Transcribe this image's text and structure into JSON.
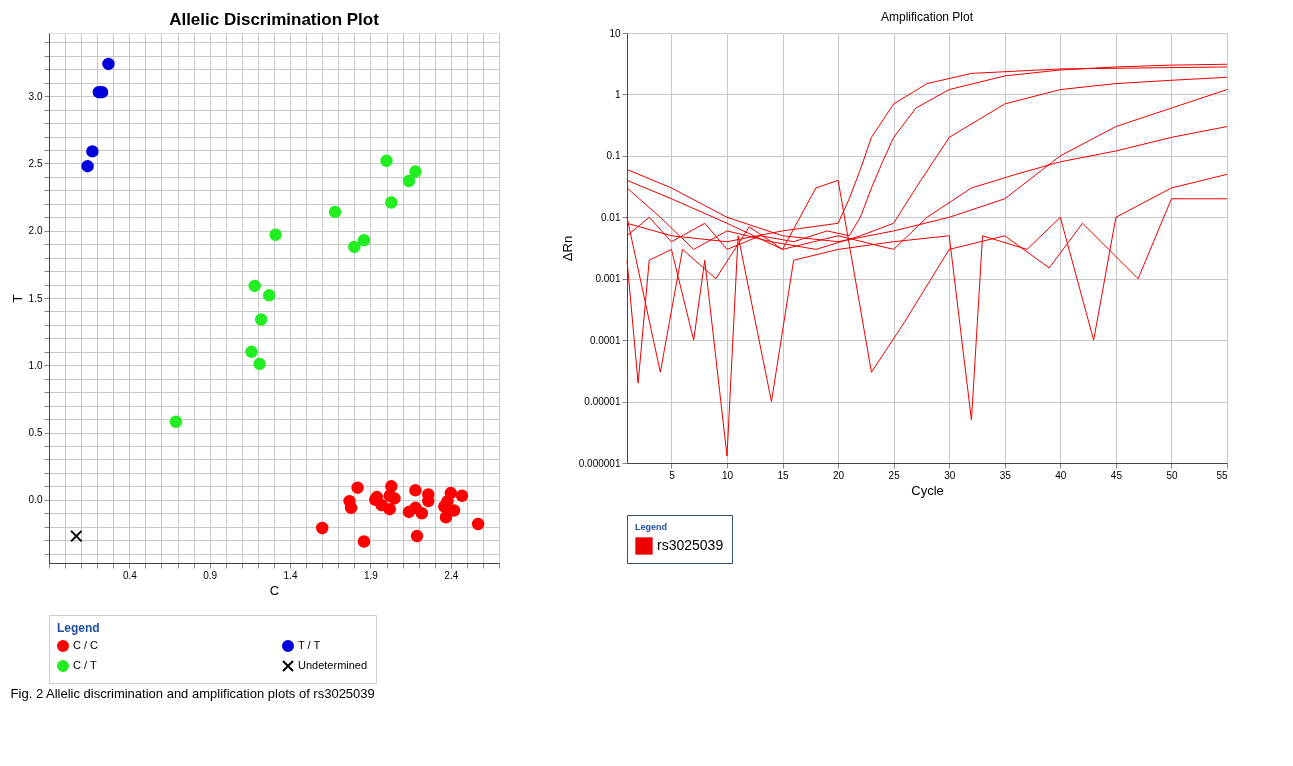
{
  "chart_data": [
    {
      "type": "scatter",
      "title": "Allelic Discrimination Plot",
      "xlabel": "C",
      "ylabel": "T",
      "legend_title": "Legend",
      "legend": "bottom",
      "grid": true,
      "xlim": [
        -0.1,
        2.7
      ],
      "ylim": [
        -0.47,
        3.47
      ],
      "xticks": [
        {
          "value": -0.1,
          "label": null
        },
        {
          "value": 0,
          "label": null
        },
        {
          "value": 0.1,
          "label": null
        },
        {
          "value": 0.2,
          "label": null
        },
        {
          "value": 0.3,
          "label": null
        },
        0.4,
        {
          "value": 0.5,
          "label": null
        },
        {
          "value": 0.6,
          "label": null
        },
        {
          "value": 0.7,
          "label": null
        },
        {
          "value": 0.8,
          "label": null
        },
        0.9,
        {
          "value": 1.0,
          "label": null
        },
        {
          "value": 1.1,
          "label": null
        },
        {
          "value": 1.2,
          "label": null
        },
        {
          "value": 1.3,
          "label": null
        },
        1.4,
        {
          "value": 1.5,
          "label": null
        },
        {
          "value": 1.6,
          "label": null
        },
        {
          "value": 1.7,
          "label": null
        },
        {
          "value": 1.8,
          "label": null
        },
        1.9,
        {
          "value": 2.0,
          "label": null
        },
        {
          "value": 2.1,
          "label": null
        },
        {
          "value": 2.2,
          "label": null
        },
        {
          "value": 2.3,
          "label": null
        },
        2.4,
        {
          "value": 2.5,
          "label": null
        },
        {
          "value": 2.6,
          "label": null
        },
        {
          "value": 2.7,
          "label": null
        }
      ],
      "yticks": [
        {
          "value": -0.4,
          "label": null
        },
        {
          "value": -0.3,
          "label": null
        },
        {
          "value": -0.2,
          "label": null
        },
        {
          "value": -0.1,
          "label": null
        },
        {
          "value": 0,
          "label": "0.0"
        },
        {
          "value": 0.1,
          "label": null
        },
        {
          "value": 0.2,
          "label": null
        },
        {
          "value": 0.3,
          "label": null
        },
        {
          "value": 0.4,
          "label": null
        },
        0.5,
        {
          "value": 0.6,
          "label": null
        },
        {
          "value": 0.7,
          "label": null
        },
        {
          "value": 0.8,
          "label": null
        },
        {
          "value": 0.9,
          "label": null
        },
        {
          "value": 1,
          "label": "1.0"
        },
        {
          "value": 1.1,
          "label": null
        },
        {
          "value": 1.2,
          "label": null
        },
        {
          "value": 1.3,
          "label": null
        },
        {
          "value": 1.4,
          "label": null
        },
        1.5,
        {
          "value": 1.6,
          "label": null
        },
        {
          "value": 1.7,
          "label": null
        },
        {
          "value": 1.8,
          "label": null
        },
        {
          "value": 1.9,
          "label": null
        },
        {
          "value": 2,
          "label": "2.0"
        },
        {
          "value": 2.1,
          "label": null
        },
        {
          "value": 2.2,
          "label": null
        },
        {
          "value": 2.3,
          "label": null
        },
        {
          "value": 2.4,
          "label": null
        },
        2.5,
        {
          "value": 2.6,
          "label": null
        },
        {
          "value": 2.7,
          "label": null
        },
        {
          "value": 2.8,
          "label": null
        },
        {
          "value": 2.9,
          "label": null
        },
        {
          "value": 3,
          "label": "3.0"
        },
        {
          "value": 3.1,
          "label": null
        },
        {
          "value": 3.2,
          "label": null
        },
        {
          "value": 3.3,
          "label": null
        },
        {
          "value": 3.4,
          "label": null
        }
      ],
      "annotations": [
        "Fig. 2 Allelic discrimination and amplification plots of rs3025039"
      ],
      "series": [
        {
          "name": "C / C",
          "color": "#ff0000",
          "marker": "circle",
          "x": [
            1.6,
            1.86,
            1.82,
            1.77,
            1.78,
            1.94,
            1.93,
            1.97,
            2.03,
            2.02,
            2.05,
            2.02,
            2.18,
            2.14,
            2.18,
            2.22,
            2.19,
            2.26,
            2.26,
            2.4,
            2.38,
            2.36,
            2.37,
            2.42,
            2.47,
            2.57
          ],
          "values": [
            -0.21,
            -0.31,
            0.09,
            -0.01,
            -0.06,
            0.02,
            0.0,
            -0.04,
            0.1,
            0.03,
            0.01,
            -0.07,
            0.07,
            -0.09,
            -0.06,
            -0.1,
            -0.27,
            0.04,
            -0.01,
            0.05,
            -0.01,
            -0.05,
            -0.13,
            -0.08,
            0.03,
            -0.18
          ]
        },
        {
          "name": "T / T",
          "color": "#0000dd",
          "marker": "circle",
          "x": [
            0.27,
            0.21,
            0.23,
            0.17,
            0.14
          ],
          "values": [
            3.24,
            3.03,
            3.03,
            2.59,
            2.48
          ]
        },
        {
          "name": "C / T",
          "color": "#22ee22",
          "marker": "circle",
          "x": [
            0.69,
            1.16,
            1.21,
            1.22,
            1.18,
            1.27,
            1.31,
            1.68,
            1.8,
            1.86,
            2.0,
            2.03,
            2.14,
            2.18
          ],
          "values": [
            0.58,
            1.1,
            1.01,
            1.34,
            1.59,
            1.52,
            1.97,
            2.14,
            1.88,
            1.93,
            2.52,
            2.21,
            2.37,
            2.44
          ]
        },
        {
          "name": "Undetermined",
          "color": "#000000",
          "marker": "cross",
          "x": [
            0.07
          ],
          "values": [
            -0.27
          ]
        }
      ]
    },
    {
      "type": "line",
      "title": "Amplification Plot",
      "xlabel": "Cycle",
      "ylabel": "ΔRn",
      "legend_title": "Legend",
      "legend": "bottom",
      "grid": true,
      "log": "y",
      "line_style": "solid",
      "xlim": [
        1,
        55
      ],
      "ylim": [
        1e-06,
        10
      ],
      "xticks": [
        5,
        10,
        15,
        20,
        25,
        30,
        35,
        40,
        45,
        50,
        55
      ],
      "yticks": [
        {
          "value": 1e-06,
          "label": "0.000001"
        },
        {
          "value": 1e-05,
          "label": "0.00001"
        },
        {
          "value": 0.0001,
          "label": "0.0001"
        },
        {
          "value": 0.001,
          "label": "0.001"
        },
        {
          "value": 0.01,
          "label": "0.01"
        },
        {
          "value": 0.1,
          "label": "0.1"
        },
        1,
        10
      ],
      "series": [
        {
          "name": "rs3025039",
          "color": "#ee0000",
          "x": [
            1,
            3,
            5,
            8,
            10,
            13,
            16,
            19,
            21,
            22,
            23,
            24,
            25,
            27,
            30,
            35,
            40,
            45,
            50,
            55
          ],
          "values": [
            0.005,
            0.01,
            0.004,
            0.008,
            0.003,
            0.005,
            0.004,
            0.006,
            0.005,
            0.01,
            0.03,
            0.08,
            0.2,
            0.6,
            1.2,
            2,
            2.5,
            2.8,
            3,
            3.1
          ]
        },
        {
          "color": "#ee0000",
          "x": [
            1,
            5,
            10,
            15,
            20,
            21,
            22,
            23,
            25,
            28,
            32,
            40,
            55
          ],
          "values": [
            0.008,
            0.005,
            0.004,
            0.006,
            0.008,
            0.02,
            0.06,
            0.2,
            0.7,
            1.5,
            2.2,
            2.6,
            2.8
          ]
        },
        {
          "color": "#ee0000",
          "x": [
            1,
            4,
            7,
            10,
            14,
            18,
            22,
            25,
            27,
            30,
            35,
            40,
            45,
            50,
            55
          ],
          "values": [
            0.03,
            0.01,
            0.003,
            0.006,
            0.004,
            0.003,
            0.005,
            0.008,
            0.03,
            0.2,
            0.7,
            1.2,
            1.5,
            1.7,
            1.9
          ]
        },
        {
          "color": "#ee0000",
          "x": [
            1,
            5,
            10,
            15,
            20,
            25,
            30,
            35,
            40,
            45,
            50,
            55
          ],
          "values": [
            0.06,
            0.03,
            0.01,
            0.005,
            0.004,
            0.006,
            0.01,
            0.02,
            0.1,
            0.3,
            0.6,
            1.2
          ]
        },
        {
          "color": "#ee0000",
          "x": [
            1,
            5,
            10,
            15,
            20,
            25,
            28,
            32,
            36,
            40,
            45,
            50,
            55
          ],
          "values": [
            0.04,
            0.02,
            0.008,
            0.003,
            0.005,
            0.003,
            0.01,
            0.03,
            0.05,
            0.08,
            0.12,
            0.2,
            0.3
          ]
        },
        {
          "color": "#ee0000",
          "x": [
            1,
            2,
            3,
            5,
            7,
            8,
            10,
            11,
            14,
            16,
            20,
            25,
            30,
            32,
            33,
            37,
            40,
            43,
            45,
            50,
            55
          ],
          "values": [
            0.002,
            2e-05,
            0.002,
            0.003,
            0.0001,
            0.002,
            1.3e-06,
            0.005,
            1e-05,
            0.002,
            0.003,
            0.004,
            0.005,
            5e-06,
            0.005,
            0.003,
            0.01,
            0.0001,
            0.01,
            0.03,
            0.05
          ]
        },
        {
          "color": "#ee0000",
          "x": [
            1,
            4,
            6,
            9,
            12,
            15,
            18,
            20,
            23,
            26,
            30,
            35,
            39,
            42,
            47,
            50,
            55
          ],
          "values": [
            0.01,
            3e-05,
            0.003,
            0.001,
            0.007,
            0.003,
            0.03,
            0.04,
            3e-05,
            0.0002,
            0.003,
            0.005,
            0.0015,
            0.008,
            0.001,
            0.02,
            0.02
          ]
        }
      ]
    }
  ]
}
